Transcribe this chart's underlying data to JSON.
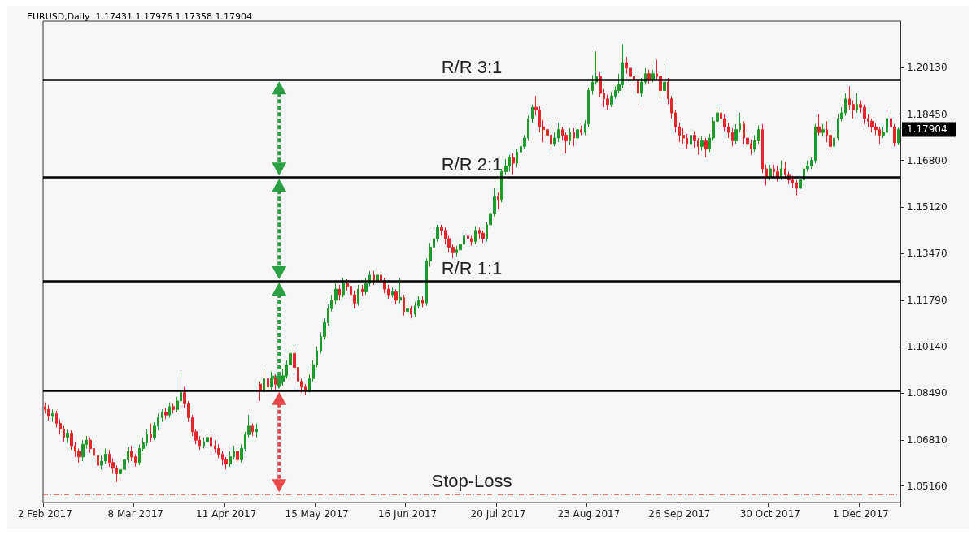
{
  "chart_data": {
    "type": "candlestick",
    "title": "EURUSD,Daily  1.17431 1.17976 1.17358 1.17904",
    "colors": [
      "#e3262b",
      "#e3262b",
      "#1e9a2c",
      "#e3262b",
      "#e3262b",
      "#e3262b",
      "#1e9a2c",
      "#e3262b",
      "#e3262b",
      "#e3262b",
      "#1e9a2c",
      "#1e9a2c",
      "#e3262b",
      "#e3262b",
      "#e3262b",
      "#1e9a2c",
      "#1e9a2c",
      "#e3262b",
      "#e3262b",
      "#e3262b",
      "#1e9a2c",
      "#1e9a2c",
      "#1e9a2c",
      "#e3262b",
      "#e3262b",
      "#1e9a2c",
      "#1e9a2c",
      "#1e9a2c",
      "#e3262b",
      "#1e9a2c",
      "#1e9a2c",
      "#1e9a2c",
      "#e3262b",
      "#1e9a2c",
      "#e3262b",
      "#1e9a2c",
      "#1e9a2c",
      "#e3262b",
      "#e3262b",
      "#e3262b",
      "#e3262b",
      "#e3262b",
      "#1e9a2c",
      "#1e9a2c",
      "#e3262b",
      "#e3262b",
      "#e3262b",
      "#e3262b",
      "#e3262b",
      "#1e9a2c",
      "#1e9a2c",
      "#e3262b",
      "#1e9a2c",
      "#1e9a2c",
      "#1e9a2c",
      "#e3262b",
      "#1e9a2c",
      "#e3262b",
      "#1e9a2c",
      "#e3262b",
      "#1e9a2c",
      "#e3262b",
      "#1e9a2c",
      "#1e9a2c",
      "#1e9a2c",
      "#1e9a2c",
      "#e3262b",
      "#e3262b",
      "#e3262b",
      "#e3262b",
      "#1e9a2c",
      "#1e9a2c",
      "#1e9a2c",
      "#1e9a2c",
      "#1e9a2c",
      "#1e9a2c",
      "#1e9a2c",
      "#1e9a2c",
      "#e3262b",
      "#1e9a2c",
      "#e3262b",
      "#e3262b",
      "#e3262b",
      "#1e9a2c",
      "#e3262b",
      "#1e9a2c",
      "#1e9a2c",
      "#e3262b",
      "#1e9a2c",
      "#e3262b",
      "#e3262b",
      "#e3262b",
      "#1e9a2c",
      "#e3262b",
      "#1e9a2c",
      "#e3262b",
      "#1e9a2c",
      "#e3262b",
      "#1e9a2c",
      "#1e9a2c",
      "#e3262b",
      "#1e9a2c",
      "#1e9a2c",
      "#1e9a2c",
      "#1e9a2c",
      "#e3262b",
      "#e3262b",
      "#e3262b",
      "#e3262b",
      "#1e9a2c",
      "#1e9a2c",
      "#1e9a2c",
      "#e3262b",
      "#e3262b",
      "#1e9a2c",
      "#e3262b",
      "#e3262b",
      "#1e9a2c",
      "#1e9a2c",
      "#1e9a2c",
      "#e3262b",
      "#1e9a2c",
      "#1e9a2c",
      "#1e9a2c",
      "#e3262b",
      "#1e9a2c",
      "#1e9a2c",
      "#1e9a2c",
      "#1e9a2c",
      "#1e9a2c",
      "#e3262b",
      "#e3262b",
      "#e3262b",
      "#e3262b",
      "#e3262b",
      "#1e9a2c",
      "#1e9a2c",
      "#e3262b",
      "#e3262b",
      "#1e9a2c",
      "#e3262b",
      "#1e9a2c",
      "#e3262b",
      "#1e9a2c",
      "#1e9a2c",
      "#1e9a2c",
      "#1e9a2c",
      "#e3262b",
      "#e3262b",
      "#e3262b",
      "#1e9a2c",
      "#1e9a2c",
      "#1e9a2c",
      "#1e9a2c",
      "#e3262b",
      "#e3262b",
      "#e3262b",
      "#e3262b",
      "#1e9a2c",
      "#1e9a2c",
      "#e3262b",
      "#1e9a2c",
      "#e3262b",
      "#e3262b",
      "#1e9a2c",
      "#e3262b",
      "#e3262b",
      "#e3262b",
      "#e3262b",
      "#e3262b",
      "#e3262b",
      "#1e9a2c",
      "#e3262b",
      "#e3262b",
      "#1e9a2c",
      "#e3262b",
      "#1e9a2c",
      "#1e9a2c",
      "#1e9a2c",
      "#e3262b",
      "#e3262b",
      "#e3262b",
      "#e3262b",
      "#1e9a2c",
      "#1e9a2c",
      "#e3262b",
      "#e3262b",
      "#e3262b",
      "#1e9a2c",
      "#1e9a2c",
      "#e3262b",
      "#e3262b",
      "#1e9a2c",
      "#e3262b",
      "#e3262b",
      "#1e9a2c",
      "#e3262b",
      "#e3262b",
      "#e3262b",
      "#e3262b",
      "#1e9a2c",
      "#1e9a2c",
      "#1e9a2c",
      "#1e9a2c",
      "#1e9a2c",
      "#e3262b",
      "#1e9a2c",
      "#e3262b",
      "#e3262b",
      "#1e9a2c",
      "#1e9a2c",
      "#1e9a2c",
      "#1e9a2c",
      "#e3262b",
      "#e3262b",
      "#1e9a2c",
      "#e3262b",
      "#e3262b",
      "#e3262b",
      "#e3262b",
      "#e3262b",
      "#e3262b",
      "#1e9a2c",
      "#1e9a2c",
      "#e3262b",
      "#e3262b",
      "#1e9a2c"
    ],
    "categories": [
      "2 Feb 2017",
      null,
      null,
      null,
      null,
      null,
      null,
      null,
      null,
      null,
      null,
      null,
      null,
      null,
      null,
      null,
      null,
      null,
      null,
      null,
      null,
      null,
      null,
      null,
      "8 Mar 2017",
      null,
      null,
      null,
      null,
      null,
      null,
      null,
      null,
      null,
      null,
      null,
      null,
      null,
      null,
      null,
      null,
      null,
      null,
      null,
      null,
      null,
      null,
      null,
      "11 Apr 2017",
      null,
      null,
      null,
      null,
      null,
      null,
      null,
      null,
      null,
      null,
      null,
      null,
      null,
      null,
      null,
      null,
      null,
      null,
      null,
      null,
      null,
      null,
      null,
      "15 May 2017",
      null,
      null,
      null,
      null,
      null,
      null,
      null,
      null,
      null,
      null,
      null,
      null,
      null,
      null,
      null,
      null,
      null,
      null,
      null,
      null,
      null,
      null,
      null,
      "16 Jun 2017",
      null,
      null,
      null,
      null,
      null,
      null,
      null,
      null,
      null,
      null,
      null,
      null,
      null,
      null,
      null,
      null,
      null,
      null,
      null,
      null,
      null,
      null,
      null,
      "20 Jul 2017",
      null,
      null,
      null,
      null,
      null,
      null,
      null,
      null,
      null,
      null,
      null,
      null,
      null,
      null,
      null,
      null,
      null,
      null,
      null,
      null,
      null,
      null,
      null,
      "23 Aug 2017",
      null,
      null,
      null,
      null,
      null,
      null,
      null,
      null,
      null,
      null,
      null,
      null,
      null,
      null,
      null,
      null,
      null,
      null,
      null,
      null,
      null,
      null,
      null,
      "26 Sep 2017",
      null,
      null,
      null,
      null,
      null,
      null,
      null,
      null,
      null,
      null,
      null,
      null,
      null,
      null,
      null,
      null,
      null,
      null,
      null,
      null,
      null,
      null,
      null,
      "30 Oct 2017",
      null,
      null,
      null,
      null,
      null,
      null,
      null,
      null,
      null,
      null,
      null,
      null,
      null,
      null,
      null,
      null,
      null,
      null,
      null,
      null,
      null,
      null,
      null,
      "1 Dec 2017",
      null,
      null,
      null,
      null,
      null,
      null,
      null,
      null,
      null,
      null
    ],
    "ohlc": [
      [
        1.08,
        1.0815,
        1.0775,
        1.079
      ],
      [
        1.079,
        1.0805,
        1.075,
        1.0765
      ],
      [
        1.0765,
        1.079,
        1.0745,
        1.0775
      ],
      [
        1.0775,
        1.0785,
        1.0725,
        1.074
      ],
      [
        1.074,
        1.0755,
        1.07,
        1.072
      ],
      [
        1.072,
        1.073,
        1.0675,
        1.069
      ],
      [
        1.069,
        1.072,
        1.067,
        1.0705
      ],
      [
        1.0705,
        1.0715,
        1.0645,
        1.066
      ],
      [
        1.066,
        1.0675,
        1.062,
        1.064
      ],
      [
        1.064,
        1.065,
        1.06,
        1.062
      ],
      [
        1.062,
        1.068,
        1.0605,
        1.0665
      ],
      [
        1.0665,
        1.0695,
        1.065,
        1.068
      ],
      [
        1.068,
        1.069,
        1.0635,
        1.065
      ],
      [
        1.065,
        1.0665,
        1.061,
        1.0625
      ],
      [
        1.0625,
        1.0635,
        1.057,
        1.059
      ],
      [
        1.059,
        1.0625,
        1.0575,
        1.0605
      ],
      [
        1.0605,
        1.065,
        1.0595,
        1.063
      ],
      [
        1.063,
        1.0645,
        1.0585,
        1.06
      ],
      [
        1.06,
        1.0615,
        1.056,
        1.058
      ],
      [
        1.058,
        1.059,
        1.053,
        1.056
      ],
      [
        1.056,
        1.0595,
        1.054,
        1.0575
      ],
      [
        1.0575,
        1.0625,
        1.056,
        1.061
      ],
      [
        1.061,
        1.0655,
        1.06,
        1.064
      ],
      [
        1.064,
        1.066,
        1.0605,
        1.062
      ],
      [
        1.062,
        1.063,
        1.0585,
        1.06
      ],
      [
        1.06,
        1.0665,
        1.059,
        1.065
      ],
      [
        1.065,
        1.069,
        1.064,
        1.067
      ],
      [
        1.067,
        1.072,
        1.066,
        1.07
      ],
      [
        1.07,
        1.074,
        1.0675,
        1.069
      ],
      [
        1.069,
        1.0745,
        1.068,
        1.073
      ],
      [
        1.073,
        1.0775,
        1.0715,
        1.076
      ],
      [
        1.076,
        1.079,
        1.0745,
        1.078
      ],
      [
        1.078,
        1.0795,
        1.0755,
        1.077
      ],
      [
        1.077,
        1.0815,
        1.076,
        1.08
      ],
      [
        1.08,
        1.081,
        1.0775,
        1.079
      ],
      [
        1.079,
        1.0835,
        1.078,
        1.082
      ],
      [
        1.082,
        1.092,
        1.081,
        1.085
      ],
      [
        1.085,
        1.087,
        1.0795,
        1.081
      ],
      [
        1.081,
        1.082,
        1.0745,
        1.076
      ],
      [
        1.076,
        1.077,
        1.0695,
        1.071
      ],
      [
        1.071,
        1.072,
        1.0665,
        1.068
      ],
      [
        1.068,
        1.0695,
        1.0645,
        1.066
      ],
      [
        1.066,
        1.069,
        1.065,
        1.0675
      ],
      [
        1.0675,
        1.07,
        1.066,
        1.069
      ],
      [
        1.069,
        1.07,
        1.0645,
        1.066
      ],
      [
        1.066,
        1.068,
        1.0635,
        1.065
      ],
      [
        1.065,
        1.0665,
        1.0615,
        1.063
      ],
      [
        1.063,
        1.064,
        1.059,
        1.061
      ],
      [
        1.061,
        1.062,
        1.0575,
        1.0595
      ],
      [
        1.0595,
        1.064,
        1.0585,
        1.062
      ],
      [
        1.062,
        1.066,
        1.061,
        1.064
      ],
      [
        1.064,
        1.0655,
        1.06,
        1.061
      ],
      [
        1.061,
        1.0665,
        1.06,
        1.065
      ],
      [
        1.065,
        1.071,
        1.064,
        1.07
      ],
      [
        1.07,
        1.077,
        1.069,
        1.073
      ],
      [
        1.073,
        1.074,
        1.0695,
        1.071
      ],
      [
        1.071,
        1.074,
        1.069,
        1.072
      ],
      [
        1.088,
        1.089,
        1.082,
        1.086
      ],
      [
        1.086,
        1.0935,
        1.085,
        1.09
      ],
      [
        1.09,
        1.093,
        1.0855,
        1.087
      ],
      [
        1.087,
        1.0925,
        1.086,
        1.09
      ],
      [
        1.09,
        1.0915,
        1.086,
        1.088
      ],
      [
        1.088,
        1.091,
        1.0865,
        1.089
      ],
      [
        1.089,
        1.0935,
        1.0875,
        1.091
      ],
      [
        1.091,
        1.0965,
        1.09,
        1.095
      ],
      [
        1.095,
        1.1005,
        1.094,
        1.099
      ],
      [
        1.099,
        1.102,
        1.0925,
        1.094
      ],
      [
        1.094,
        1.095,
        1.087,
        1.089
      ],
      [
        1.089,
        1.09,
        1.085,
        1.087
      ],
      [
        1.087,
        1.088,
        1.084,
        1.086
      ],
      [
        1.086,
        1.0915,
        1.085,
        1.09
      ],
      [
        1.09,
        1.0965,
        1.089,
        1.095
      ],
      [
        1.095,
        1.1015,
        1.094,
        1.1
      ],
      [
        1.1,
        1.1065,
        1.099,
        1.105
      ],
      [
        1.105,
        1.1115,
        1.104,
        1.11
      ],
      [
        1.11,
        1.1165,
        1.109,
        1.115
      ],
      [
        1.115,
        1.12,
        1.114,
        1.118
      ],
      [
        1.118,
        1.124,
        1.1165,
        1.122
      ],
      [
        1.122,
        1.1235,
        1.118,
        1.12
      ],
      [
        1.12,
        1.126,
        1.119,
        1.124
      ],
      [
        1.124,
        1.1255,
        1.1215,
        1.123
      ],
      [
        1.123,
        1.1245,
        1.1185,
        1.12
      ],
      [
        1.12,
        1.1215,
        1.115,
        1.117
      ],
      [
        1.117,
        1.1235,
        1.116,
        1.122
      ],
      [
        1.122,
        1.1235,
        1.1195,
        1.121
      ],
      [
        1.121,
        1.126,
        1.12,
        1.124
      ],
      [
        1.124,
        1.1285,
        1.123,
        1.127
      ],
      [
        1.127,
        1.1285,
        1.1235,
        1.125
      ],
      [
        1.125,
        1.1285,
        1.124,
        1.127
      ],
      [
        1.127,
        1.128,
        1.1235,
        1.125
      ],
      [
        1.125,
        1.126,
        1.1205,
        1.122
      ],
      [
        1.122,
        1.1235,
        1.1185,
        1.12
      ],
      [
        1.12,
        1.1225,
        1.119,
        1.121
      ],
      [
        1.121,
        1.122,
        1.1165,
        1.118
      ],
      [
        1.118,
        1.126,
        1.117,
        1.119
      ],
      [
        1.119,
        1.12,
        1.1125,
        1.114
      ],
      [
        1.114,
        1.117,
        1.113,
        1.115
      ],
      [
        1.115,
        1.116,
        1.1115,
        1.113
      ],
      [
        1.113,
        1.1175,
        1.112,
        1.116
      ],
      [
        1.116,
        1.1195,
        1.115,
        1.118
      ],
      [
        1.118,
        1.1195,
        1.1155,
        1.117
      ],
      [
        1.117,
        1.133,
        1.116,
        1.132
      ],
      [
        1.132,
        1.1385,
        1.13,
        1.137
      ],
      [
        1.137,
        1.142,
        1.136,
        1.14
      ],
      [
        1.14,
        1.145,
        1.139,
        1.144
      ],
      [
        1.144,
        1.145,
        1.141,
        1.143
      ],
      [
        1.143,
        1.144,
        1.138,
        1.14
      ],
      [
        1.14,
        1.141,
        1.135,
        1.137
      ],
      [
        1.137,
        1.138,
        1.133,
        1.135
      ],
      [
        1.135,
        1.1375,
        1.1335,
        1.136
      ],
      [
        1.136,
        1.1395,
        1.135,
        1.138
      ],
      [
        1.138,
        1.1425,
        1.137,
        1.141
      ],
      [
        1.141,
        1.1425,
        1.139,
        1.14
      ],
      [
        1.14,
        1.141,
        1.1375,
        1.139
      ],
      [
        1.139,
        1.1445,
        1.138,
        1.143
      ],
      [
        1.143,
        1.144,
        1.14,
        1.142
      ],
      [
        1.142,
        1.143,
        1.1385,
        1.14
      ],
      [
        1.14,
        1.146,
        1.139,
        1.145
      ],
      [
        1.145,
        1.1505,
        1.144,
        1.149
      ],
      [
        1.149,
        1.158,
        1.148,
        1.155
      ],
      [
        1.155,
        1.1565,
        1.1505,
        1.154
      ],
      [
        1.154,
        1.165,
        1.153,
        1.164
      ],
      [
        1.164,
        1.1685,
        1.163,
        1.166
      ],
      [
        1.166,
        1.17,
        1.164,
        1.169
      ],
      [
        1.169,
        1.1705,
        1.163,
        1.167
      ],
      [
        1.167,
        1.172,
        1.1655,
        1.171
      ],
      [
        1.171,
        1.176,
        1.17,
        1.173
      ],
      [
        1.173,
        1.177,
        1.172,
        1.176
      ],
      [
        1.176,
        1.184,
        1.175,
        1.183
      ],
      [
        1.183,
        1.188,
        1.1815,
        1.187
      ],
      [
        1.187,
        1.191,
        1.184,
        1.186
      ],
      [
        1.186,
        1.1875,
        1.178,
        1.18
      ],
      [
        1.18,
        1.1825,
        1.1745,
        1.179
      ],
      [
        1.179,
        1.1815,
        1.1755,
        1.177
      ],
      [
        1.177,
        1.179,
        1.1715,
        1.174
      ],
      [
        1.174,
        1.178,
        1.173,
        1.176
      ],
      [
        1.176,
        1.1815,
        1.1745,
        1.179
      ],
      [
        1.179,
        1.18,
        1.175,
        1.177
      ],
      [
        1.177,
        1.178,
        1.1705,
        1.175
      ],
      [
        1.175,
        1.1795,
        1.1735,
        1.178
      ],
      [
        1.178,
        1.1795,
        1.173,
        1.176
      ],
      [
        1.176,
        1.181,
        1.175,
        1.179
      ],
      [
        1.179,
        1.1805,
        1.177,
        1.178
      ],
      [
        1.178,
        1.1825,
        1.177,
        1.181
      ],
      [
        1.181,
        1.194,
        1.18,
        1.193
      ],
      [
        1.193,
        1.1985,
        1.1915,
        1.196
      ],
      [
        1.196,
        1.207,
        1.195,
        1.198
      ],
      [
        1.198,
        1.1995,
        1.1905,
        1.192
      ],
      [
        1.192,
        1.1935,
        1.187,
        1.19
      ],
      [
        1.19,
        1.1915,
        1.186,
        1.188
      ],
      [
        1.188,
        1.1925,
        1.187,
        1.191
      ],
      [
        1.191,
        1.1945,
        1.19,
        1.193
      ],
      [
        1.193,
        1.199,
        1.192,
        1.195
      ],
      [
        1.195,
        1.2095,
        1.194,
        1.203
      ],
      [
        1.203,
        1.205,
        1.199,
        1.201
      ],
      [
        1.201,
        1.2025,
        1.195,
        1.198
      ],
      [
        1.198,
        1.1995,
        1.195,
        1.197
      ],
      [
        1.197,
        1.1985,
        1.188,
        1.192
      ],
      [
        1.192,
        1.1975,
        1.1905,
        1.196
      ],
      [
        1.196,
        1.201,
        1.195,
        1.199
      ],
      [
        1.199,
        1.2005,
        1.1955,
        1.197
      ],
      [
        1.197,
        1.2005,
        1.196,
        1.199
      ],
      [
        1.199,
        1.204,
        1.1965,
        1.198
      ],
      [
        1.198,
        1.1995,
        1.19,
        1.193
      ],
      [
        1.193,
        1.2025,
        1.192,
        1.196
      ],
      [
        1.196,
        1.1975,
        1.188,
        1.19
      ],
      [
        1.19,
        1.191,
        1.183,
        1.185
      ],
      [
        1.185,
        1.186,
        1.178,
        1.18
      ],
      [
        1.18,
        1.1815,
        1.1745,
        1.177
      ],
      [
        1.177,
        1.1795,
        1.174,
        1.176
      ],
      [
        1.176,
        1.1775,
        1.172,
        1.174
      ],
      [
        1.174,
        1.179,
        1.173,
        1.177
      ],
      [
        1.177,
        1.1785,
        1.1725,
        1.175
      ],
      [
        1.175,
        1.176,
        1.17,
        1.173
      ],
      [
        1.173,
        1.1765,
        1.1715,
        1.175
      ],
      [
        1.175,
        1.176,
        1.169,
        1.172
      ],
      [
        1.172,
        1.1775,
        1.171,
        1.176
      ],
      [
        1.176,
        1.1835,
        1.175,
        1.182
      ],
      [
        1.182,
        1.187,
        1.181,
        1.185
      ],
      [
        1.185,
        1.1865,
        1.181,
        1.183
      ],
      [
        1.183,
        1.1845,
        1.1785,
        1.18
      ],
      [
        1.18,
        1.1815,
        1.176,
        1.178
      ],
      [
        1.178,
        1.1795,
        1.173,
        1.175
      ],
      [
        1.175,
        1.181,
        1.174,
        1.179
      ],
      [
        1.179,
        1.185,
        1.178,
        1.181
      ],
      [
        1.181,
        1.182,
        1.174,
        1.176
      ],
      [
        1.176,
        1.1775,
        1.172,
        1.174
      ],
      [
        1.174,
        1.1755,
        1.17,
        1.172
      ],
      [
        1.172,
        1.177,
        1.171,
        1.175
      ],
      [
        1.175,
        1.1805,
        1.174,
        1.179
      ],
      [
        1.179,
        1.181,
        1.1635,
        1.165
      ],
      [
        1.165,
        1.1665,
        1.159,
        1.162
      ],
      [
        1.162,
        1.1665,
        1.161,
        1.165
      ],
      [
        1.165,
        1.1665,
        1.162,
        1.164
      ],
      [
        1.164,
        1.166,
        1.1605,
        1.162
      ],
      [
        1.162,
        1.168,
        1.161,
        1.165
      ],
      [
        1.165,
        1.1675,
        1.1615,
        1.163
      ],
      [
        1.163,
        1.164,
        1.1595,
        1.161
      ],
      [
        1.161,
        1.1625,
        1.158,
        1.16
      ],
      [
        1.16,
        1.161,
        1.1555,
        1.158
      ],
      [
        1.158,
        1.1625,
        1.157,
        1.161
      ],
      [
        1.161,
        1.1665,
        1.16,
        1.165
      ],
      [
        1.165,
        1.168,
        1.164,
        1.166
      ],
      [
        1.166,
        1.169,
        1.165,
        1.168
      ],
      [
        1.168,
        1.181,
        1.167,
        1.18
      ],
      [
        1.18,
        1.1845,
        1.177,
        1.178
      ],
      [
        1.178,
        1.181,
        1.1765,
        1.179
      ],
      [
        1.179,
        1.182,
        1.1745,
        1.177
      ],
      [
        1.177,
        1.1785,
        1.1715,
        1.173
      ],
      [
        1.173,
        1.178,
        1.172,
        1.176
      ],
      [
        1.176,
        1.1845,
        1.175,
        1.183
      ],
      [
        1.183,
        1.187,
        1.182,
        1.185
      ],
      [
        1.185,
        1.192,
        1.184,
        1.19
      ],
      [
        1.19,
        1.1945,
        1.186,
        1.188
      ],
      [
        1.188,
        1.1895,
        1.183,
        1.186
      ],
      [
        1.186,
        1.192,
        1.185,
        1.188
      ],
      [
        1.188,
        1.1895,
        1.185,
        1.187
      ],
      [
        1.187,
        1.188,
        1.181,
        1.183
      ],
      [
        1.183,
        1.1845,
        1.18,
        1.182
      ],
      [
        1.182,
        1.183,
        1.178,
        1.18
      ],
      [
        1.18,
        1.1815,
        1.177,
        1.179
      ],
      [
        1.179,
        1.18,
        1.174,
        1.177
      ],
      [
        1.177,
        1.18,
        1.176,
        1.178
      ],
      [
        1.178,
        1.1845,
        1.177,
        1.183
      ],
      [
        1.183,
        1.186,
        1.178,
        1.18
      ],
      [
        1.18,
        1.181,
        1.173,
        1.1743
      ],
      [
        1.17431,
        1.17976,
        1.17358,
        1.17904
      ]
    ],
    "ylim": [
      1.0457,
      1.2178
    ],
    "yticks": [
      {
        "value": 1.0516,
        "label": "1.05160"
      },
      {
        "value": 1.0681,
        "label": "1.06810"
      },
      {
        "value": 1.0849,
        "label": "1.08490"
      },
      {
        "value": 1.1014,
        "label": "1.10140"
      },
      {
        "value": 1.1179,
        "label": "1.11790"
      },
      {
        "value": 1.1347,
        "label": "1.13470"
      },
      {
        "value": 1.1512,
        "label": "1.15120"
      },
      {
        "value": 1.168,
        "label": "1.16800"
      },
      {
        "value": 1.1845,
        "label": "1.18450"
      },
      {
        "value": 1.2013,
        "label": "1.20130"
      }
    ],
    "ref_lines": [
      {
        "axis": "y",
        "value": 1.1968,
        "label": "R/R 3:1",
        "color": "#000000"
      },
      {
        "axis": "y",
        "value": 1.162,
        "label": "R/R 2:1",
        "color": "#000000"
      },
      {
        "axis": "y",
        "value": 1.1249,
        "label": "R/R 1:1",
        "color": "#000000"
      },
      {
        "axis": "y",
        "value": 1.0858,
        "label": null,
        "color": "#000000"
      },
      {
        "axis": "y",
        "value": 1.0488,
        "label": "Stop-Loss",
        "color": "#e8474a",
        "line_style": "dashed"
      }
    ],
    "annotations": [
      "1.17904"
    ],
    "grid": false
  }
}
